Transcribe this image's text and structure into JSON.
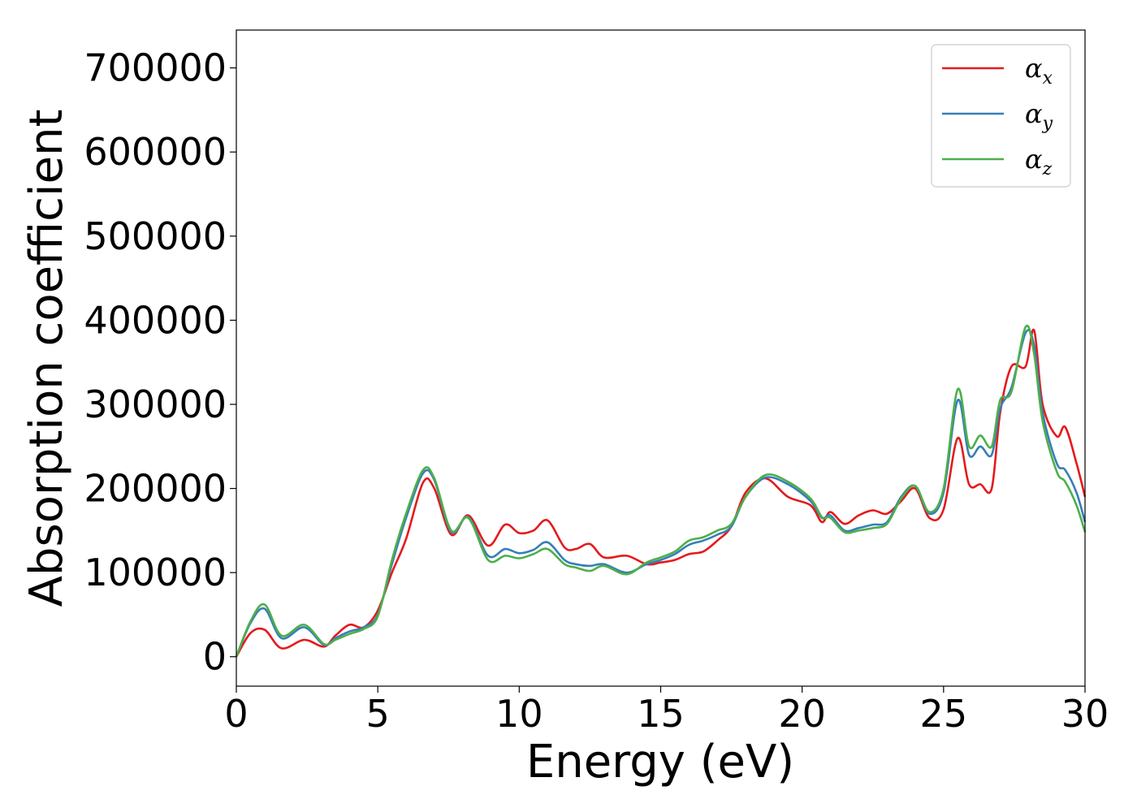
{
  "chart_data": {
    "type": "line",
    "xlabel": "Energy (eV)",
    "ylabel": "Absorption coefficient",
    "xlim": [
      0,
      30
    ],
    "ylim": [
      -35000,
      745000
    ],
    "xticks": [
      0,
      5,
      10,
      15,
      20,
      25,
      30
    ],
    "yticks": [
      0,
      100000,
      200000,
      300000,
      400000,
      500000,
      600000,
      700000
    ],
    "grid": false,
    "legend_position": "top-right",
    "series": [
      {
        "name": "α_x",
        "legend_base": "α",
        "legend_sub": "x",
        "color": "#e41a1c",
        "x": [
          0,
          0.5,
          1.0,
          1.6,
          2.4,
          3.1,
          3.5,
          4.0,
          4.5,
          5.0,
          5.5,
          6.0,
          6.6,
          7.0,
          7.6,
          8.2,
          8.9,
          9.5,
          10.0,
          10.5,
          11.0,
          11.6,
          12.0,
          12.5,
          13.0,
          13.8,
          14.5,
          15.0,
          15.5,
          16.0,
          16.5,
          17.0,
          17.5,
          18.0,
          18.7,
          19.5,
          20.3,
          20.7,
          21.0,
          21.5,
          22.0,
          22.5,
          23.0,
          23.5,
          24.0,
          24.5,
          25.0,
          25.5,
          25.9,
          26.3,
          26.7,
          27.0,
          27.4,
          27.9,
          28.2,
          28.5,
          29.0,
          29.3,
          29.7,
          30.0
        ],
        "y": [
          0,
          28000,
          32000,
          10000,
          20000,
          12000,
          25000,
          38000,
          35000,
          55000,
          100000,
          140000,
          207000,
          200000,
          145000,
          168000,
          132000,
          157000,
          147000,
          150000,
          162000,
          130000,
          128000,
          134000,
          118000,
          120000,
          110000,
          112000,
          115000,
          122000,
          125000,
          138000,
          155000,
          195000,
          212000,
          190000,
          180000,
          160000,
          172000,
          158000,
          168000,
          174000,
          170000,
          185000,
          200000,
          165000,
          175000,
          260000,
          205000,
          205000,
          200000,
          290000,
          345000,
          345000,
          388000,
          300000,
          262000,
          273000,
          230000,
          190000
        ]
      },
      {
        "name": "α_y",
        "legend_base": "α",
        "legend_sub": "y",
        "color": "#377eb8",
        "x": [
          0,
          0.5,
          1.0,
          1.6,
          2.4,
          3.1,
          3.5,
          4.0,
          4.5,
          5.0,
          5.5,
          6.0,
          6.6,
          7.0,
          7.6,
          8.2,
          8.9,
          9.5,
          10.0,
          10.5,
          11.0,
          11.6,
          12.0,
          12.5,
          13.0,
          13.8,
          14.5,
          15.0,
          15.5,
          16.0,
          16.5,
          17.0,
          17.5,
          18.0,
          18.7,
          19.5,
          20.3,
          20.7,
          21.0,
          21.5,
          22.0,
          22.5,
          23.0,
          23.5,
          24.0,
          24.5,
          25.0,
          25.5,
          25.9,
          26.3,
          26.7,
          27.0,
          27.4,
          27.9,
          28.2,
          28.5,
          29.0,
          29.3,
          29.7,
          30.0
        ],
        "y": [
          0,
          40000,
          57000,
          22000,
          35000,
          14000,
          22000,
          30000,
          35000,
          50000,
          110000,
          165000,
          218000,
          210000,
          148000,
          166000,
          120000,
          128000,
          123000,
          127000,
          136000,
          115000,
          110000,
          108000,
          110000,
          100000,
          110000,
          115000,
          122000,
          133000,
          138000,
          145000,
          155000,
          190000,
          213000,
          205000,
          185000,
          165000,
          168000,
          150000,
          153000,
          157000,
          160000,
          190000,
          203000,
          170000,
          195000,
          305000,
          240000,
          250000,
          240000,
          295000,
          320000,
          385000,
          370000,
          290000,
          230000,
          222000,
          195000,
          160000
        ]
      },
      {
        "name": "α_z",
        "legend_base": "α",
        "legend_sub": "z",
        "color": "#4daf4a",
        "x": [
          0,
          0.5,
          1.0,
          1.6,
          2.4,
          3.1,
          3.5,
          4.0,
          4.5,
          5.0,
          5.5,
          6.0,
          6.6,
          7.0,
          7.6,
          8.2,
          8.9,
          9.5,
          10.0,
          10.5,
          11.0,
          11.6,
          12.0,
          12.5,
          13.0,
          13.8,
          14.5,
          15.0,
          15.5,
          16.0,
          16.5,
          17.0,
          17.5,
          18.0,
          18.7,
          19.5,
          20.3,
          20.7,
          21.0,
          21.5,
          22.0,
          22.5,
          23.0,
          23.5,
          24.0,
          24.5,
          25.0,
          25.5,
          25.9,
          26.3,
          26.7,
          27.0,
          27.4,
          27.9,
          28.2,
          28.5,
          29.0,
          29.3,
          29.7,
          30.0
        ],
        "y": [
          0,
          42000,
          62000,
          25000,
          38000,
          15000,
          20000,
          27000,
          33000,
          48000,
          115000,
          170000,
          222000,
          212000,
          150000,
          165000,
          115000,
          120000,
          117000,
          122000,
          128000,
          110000,
          106000,
          102000,
          108000,
          98000,
          112000,
          118000,
          125000,
          138000,
          142000,
          150000,
          158000,
          190000,
          216000,
          208000,
          188000,
          166000,
          165000,
          148000,
          150000,
          153000,
          158000,
          188000,
          203000,
          172000,
          200000,
          318000,
          250000,
          263000,
          250000,
          305000,
          315000,
          392000,
          360000,
          280000,
          220000,
          208000,
          180000,
          148000
        ]
      }
    ]
  }
}
